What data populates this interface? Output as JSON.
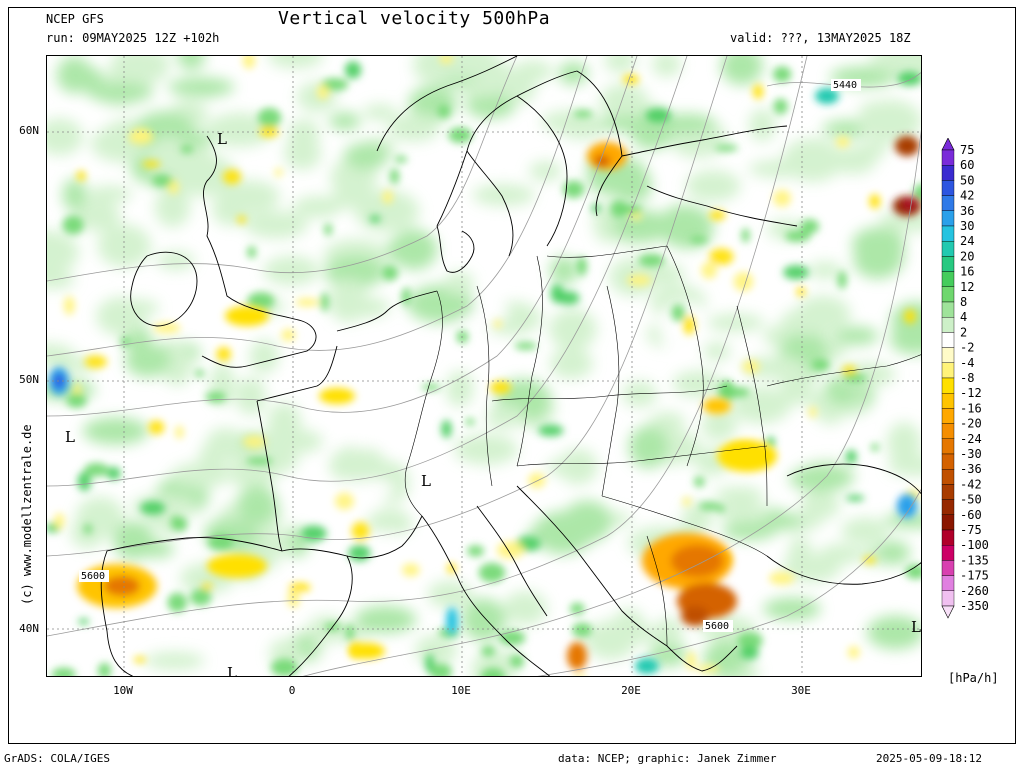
{
  "header": {
    "model": "NCEP GFS",
    "title": "Vertical velocity 500hPa",
    "run": "run: 09MAY2025 12Z +102h",
    "valid": "valid: ???, 13MAY2025 18Z"
  },
  "axes": {
    "lat_labels": [
      "60N",
      "50N",
      "40N"
    ],
    "lon_labels": [
      "10W",
      "0",
      "10E",
      "20E",
      "30E"
    ]
  },
  "map_labels": {
    "contours": [
      "5440",
      "5600",
      "5600"
    ],
    "lows": [
      "L",
      "L",
      "L",
      "L",
      "L"
    ]
  },
  "watermark": "(c) www.modellzentrale.de",
  "legend": {
    "unit": "[hPa/h]",
    "levels": [
      "75",
      "60",
      "50",
      "42",
      "36",
      "30",
      "24",
      "20",
      "16",
      "12",
      "8",
      "4",
      "2",
      "-2",
      "-4",
      "-8",
      "-12",
      "-16",
      "-20",
      "-24",
      "-30",
      "-36",
      "-42",
      "-50",
      "-60",
      "-75",
      "-100",
      "-135",
      "-175",
      "-260",
      "-350"
    ],
    "colors": [
      "#7a2bd9",
      "#3a2bd0",
      "#2d55e0",
      "#2f7ae8",
      "#2aa0ea",
      "#25c3e0",
      "#22c9b0",
      "#27c981",
      "#45cc5c",
      "#6fd76e",
      "#9fe39a",
      "#cdf0c8",
      "#ffffff",
      "#fffbc8",
      "#fff37a",
      "#ffe000",
      "#ffc400",
      "#ffa800",
      "#f58e00",
      "#e57700",
      "#d46200",
      "#c05000",
      "#a83c00",
      "#962800",
      "#8a1600",
      "#b0002a",
      "#cc0066",
      "#d840b0",
      "#e080e0",
      "#f0c0f0"
    ]
  },
  "footer": {
    "left": "GrADS: COLA/IGES",
    "center": "data: NCEP; graphic: Janek Zimmer",
    "right": "2025-05-09-18:12"
  }
}
